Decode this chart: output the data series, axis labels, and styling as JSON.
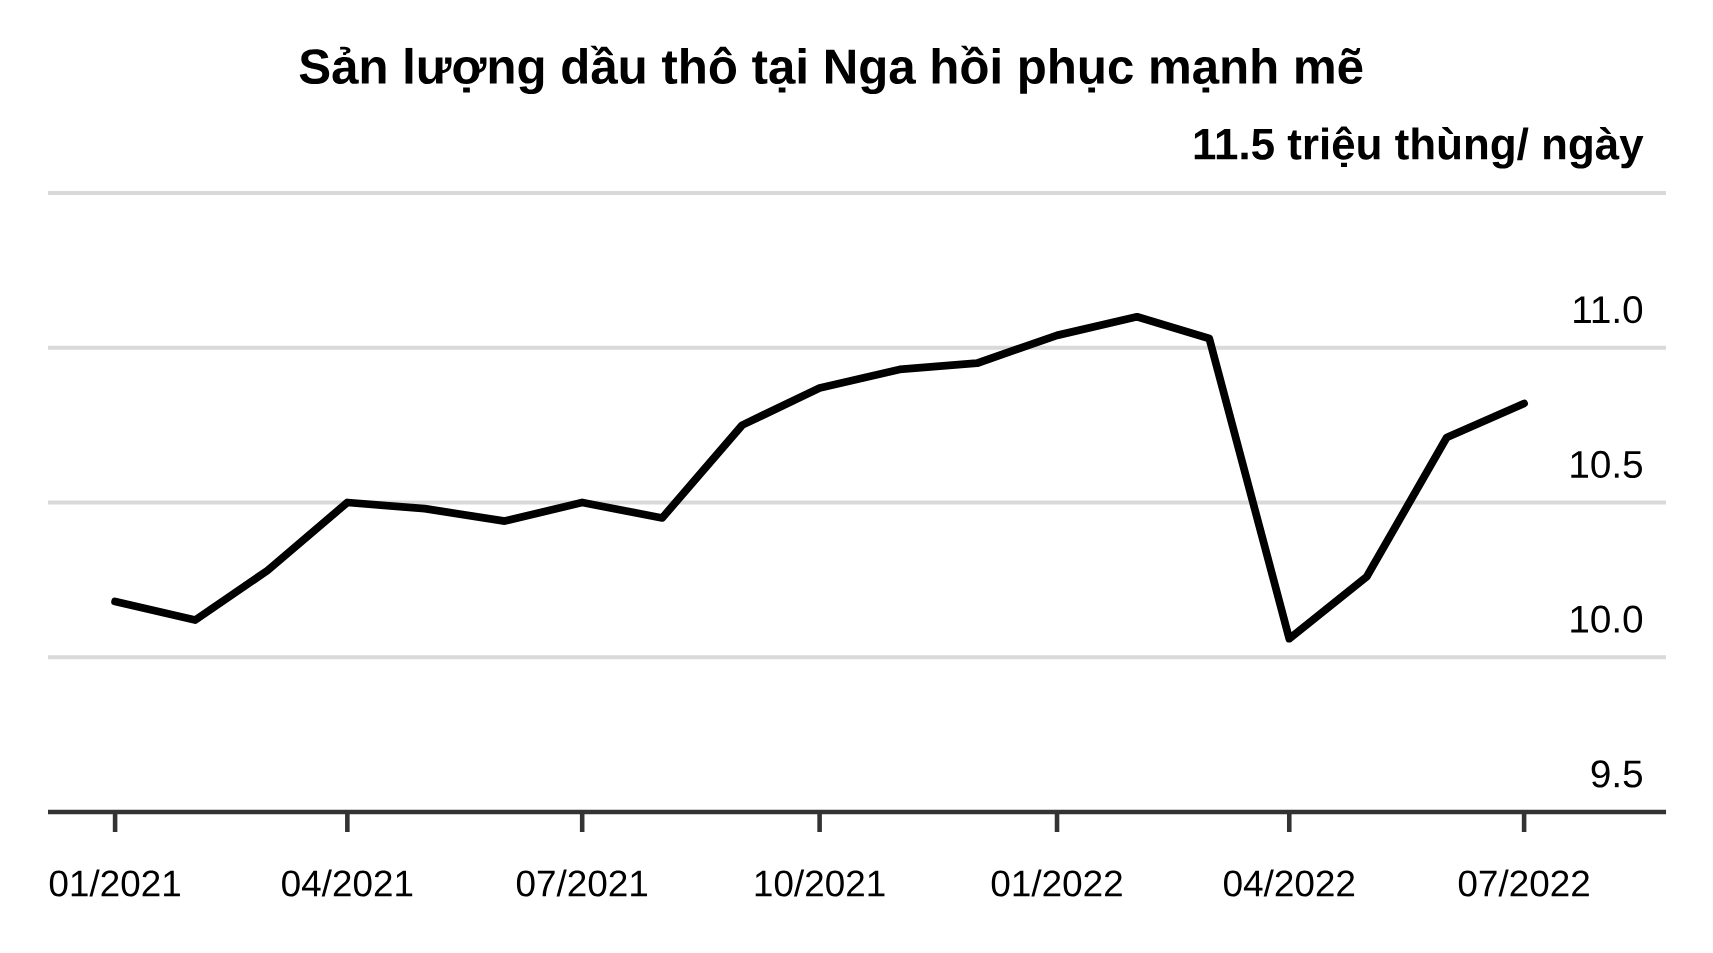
{
  "chart_data": {
    "type": "line",
    "title": "Sản lượng dầu thô tại Nga hồi phục mạnh mẽ",
    "x": [
      "2021-01",
      "2021-02",
      "2021-03",
      "2021-04",
      "2021-05",
      "2021-06",
      "2021-07",
      "2021-08",
      "2021-09",
      "2021-10",
      "2021-11",
      "2021-12",
      "2022-01",
      "2022-02",
      "2022-03",
      "2022-04",
      "2022-05",
      "2022-06",
      "2022-07"
    ],
    "series": [
      {
        "color": "#000000",
        "values": [
          10.18,
          10.12,
          10.28,
          10.5,
          10.48,
          10.44,
          10.5,
          10.45,
          10.75,
          10.87,
          10.93,
          10.95,
          11.04,
          11.1,
          11.03,
          10.06,
          10.26,
          10.71,
          10.82
        ]
      }
    ],
    "xlim": [
      "2020-12-06",
      "2022-08-25"
    ],
    "xticks": [
      {
        "value": "2021-01",
        "label": "01/2021"
      },
      {
        "value": "2021-04",
        "label": "04/2021"
      },
      {
        "value": "2021-07",
        "label": "07/2021"
      },
      {
        "value": "2021-10",
        "label": "10/2021"
      },
      {
        "value": "2022-01",
        "label": "01/2022"
      },
      {
        "value": "2022-04",
        "label": "04/2022"
      },
      {
        "value": "2022-07",
        "label": "07/2022"
      }
    ],
    "ylim": [
      9.5,
      11.5
    ],
    "yticks": [
      9.5,
      {
        "value": 10,
        "label": "10.0"
      },
      10.5,
      {
        "value": 11,
        "label": "11.0"
      },
      {
        "value": 11.5,
        "label": "11.5 triệu thùng/ ngày"
      }
    ],
    "grid": "y",
    "marker": "none",
    "line_style": "solid"
  }
}
